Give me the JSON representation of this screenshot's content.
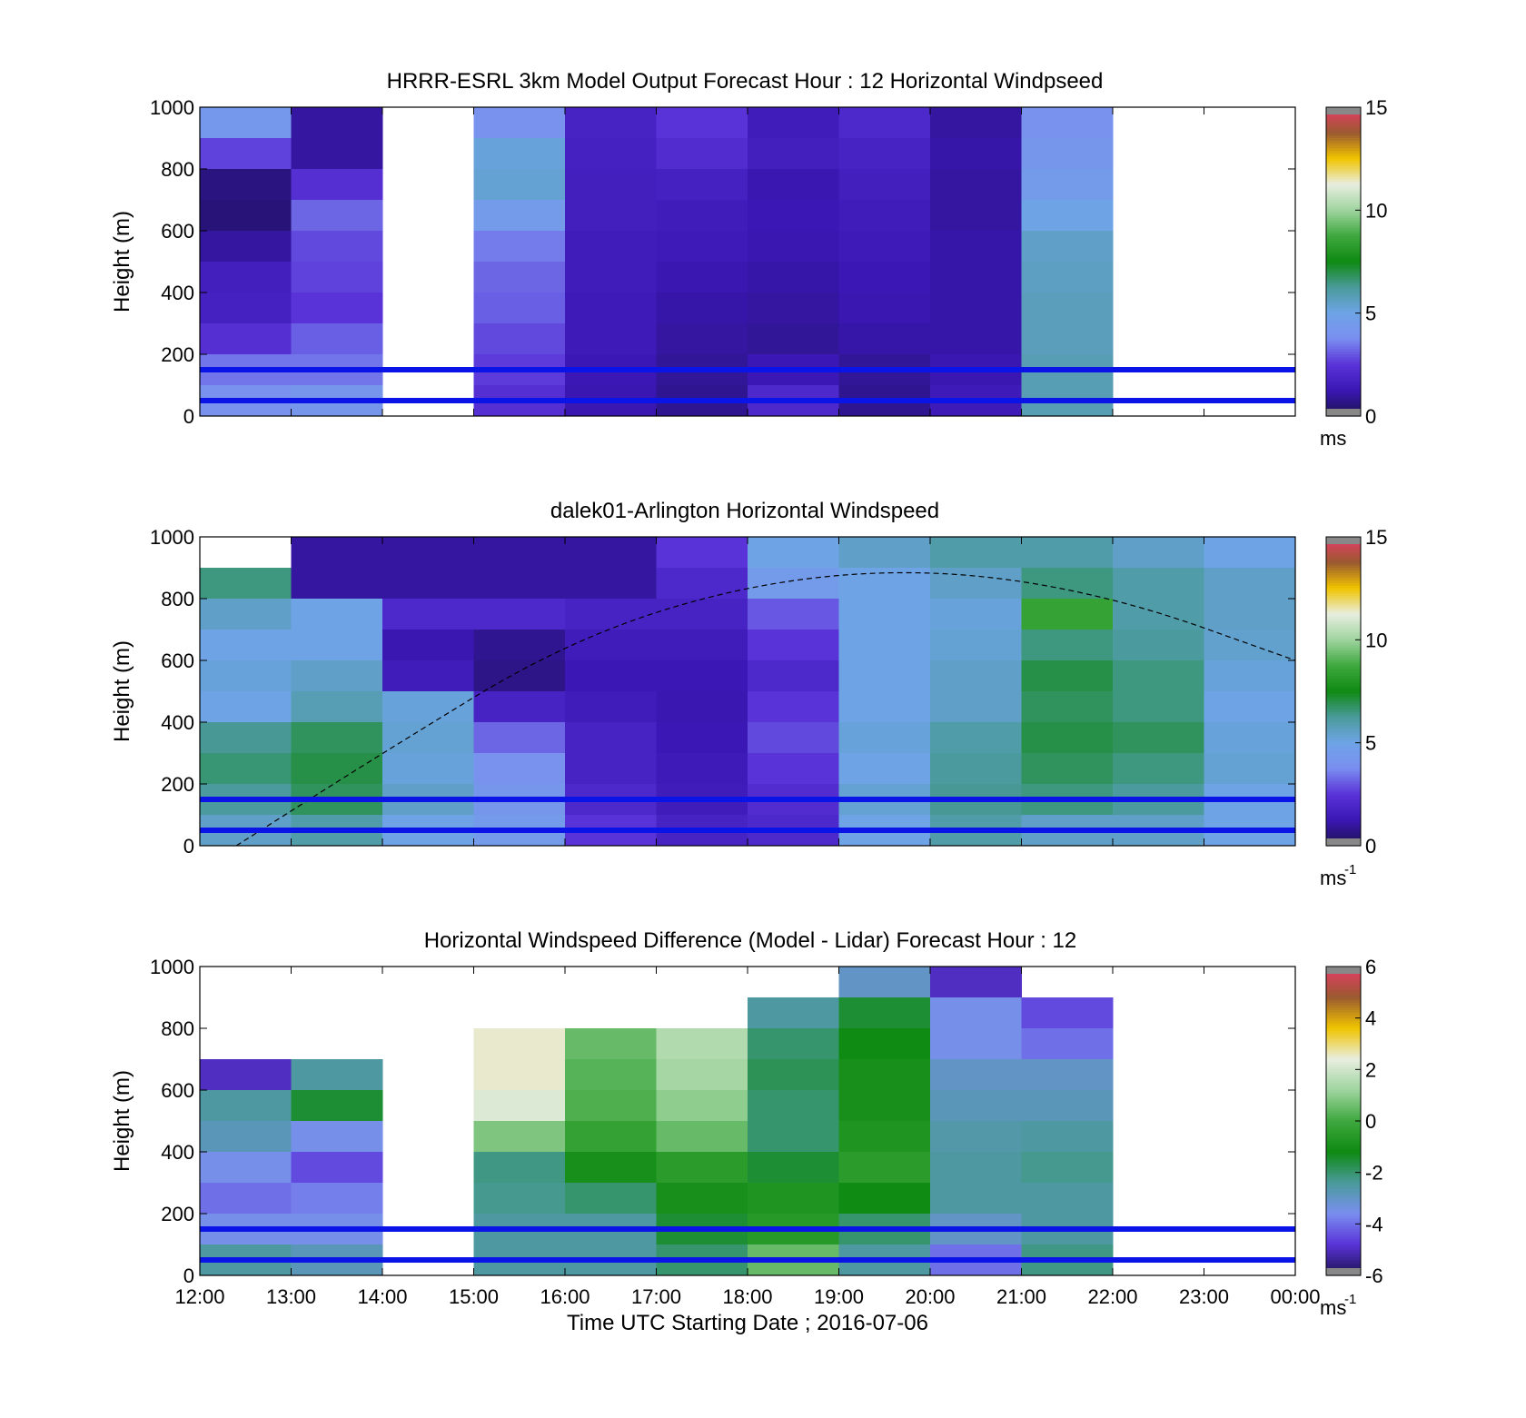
{
  "figure": {
    "xlabel": "Time UTC  Starting Date ; 2016-07-06"
  },
  "colors": {
    "reference_line": "#0a14e6",
    "missing": "#ffffff",
    "windspeed_scale": [
      "#1c1250",
      "#3a17b4",
      "#5a33d8",
      "#7a8ef0",
      "#6ea4e6",
      "#4a9a9a",
      "#0f8a12",
      "#3fa83f",
      "#9fd49f",
      "#e8eee0",
      "#f0c400",
      "#9a5a30",
      "#e83a6a"
    ],
    "difference_scale": [
      "#1c1250",
      "#5a33d8",
      "#7a8ef0",
      "#4a9a9a",
      "#0f8a12",
      "#3fa83f",
      "#9fd49f",
      "#e8eee0",
      "#f0c400",
      "#9a5a30",
      "#e83a6a"
    ]
  },
  "chart_data": [
    {
      "id": "model",
      "type": "heatmap",
      "title": "HRRR-ESRL 3km Model Output   Forecast Hour : 12 Horizontal Windpseed",
      "ylabel": "Height (m)",
      "xlim": [
        "12:00",
        "00:00"
      ],
      "ylim": [
        0,
        1000
      ],
      "yticks": [
        0,
        200,
        400,
        600,
        800,
        1000
      ],
      "hours": [
        "12:00",
        "13:00",
        "14:00",
        "15:00",
        "16:00",
        "17:00",
        "18:00",
        "19:00",
        "20:00",
        "21:00",
        "22:00",
        "23:00"
      ],
      "heights": [
        1000,
        900,
        800,
        700,
        600,
        500,
        400,
        300,
        200,
        100
      ],
      "values": [
        [
          4.3,
          1.0,
          null,
          4.0,
          1.8,
          2.5,
          1.5,
          2.0,
          1.0,
          4.0,
          null,
          null
        ],
        [
          2.7,
          1.0,
          null,
          5.2,
          1.7,
          2.2,
          1.6,
          1.8,
          1.1,
          4.2,
          null,
          null
        ],
        [
          0.6,
          2.3,
          null,
          5.3,
          1.6,
          1.7,
          1.2,
          1.6,
          1.0,
          4.5,
          null,
          null
        ],
        [
          0.5,
          3.2,
          null,
          4.5,
          1.6,
          1.5,
          1.3,
          1.5,
          1.0,
          5.0,
          null,
          null
        ],
        [
          1.0,
          2.8,
          null,
          3.5,
          1.5,
          1.4,
          1.2,
          1.4,
          1.1,
          5.5,
          null,
          null
        ],
        [
          1.6,
          2.7,
          null,
          3.2,
          1.5,
          1.2,
          1.1,
          1.3,
          1.1,
          5.6,
          null,
          null
        ],
        [
          1.7,
          2.5,
          null,
          3.1,
          1.4,
          1.1,
          1.0,
          1.2,
          1.1,
          5.7,
          null,
          null
        ],
        [
          2.3,
          3.1,
          null,
          2.8,
          1.4,
          1.0,
          0.9,
          1.1,
          1.1,
          5.7,
          null,
          null
        ],
        [
          3.4,
          3.4,
          null,
          2.6,
          1.3,
          0.9,
          1.3,
          0.9,
          1.2,
          5.8,
          null,
          null
        ],
        [
          4.0,
          4.2,
          null,
          2.3,
          1.2,
          0.8,
          2.0,
          0.8,
          1.4,
          5.8,
          null,
          null
        ]
      ],
      "reference_lines_m": [
        150,
        50
      ],
      "colorbar": {
        "range": [
          0,
          15
        ],
        "ticks": [
          0,
          5,
          10,
          15
        ],
        "unit": "ms"
      }
    },
    {
      "id": "lidar",
      "type": "heatmap",
      "title": "dalek01-Arlington  Horizontal Windspeed",
      "ylabel": "Height (m)",
      "xlim": [
        "12:00",
        "00:00"
      ],
      "ylim": [
        0,
        1000
      ],
      "yticks": [
        0,
        200,
        400,
        600,
        800,
        1000
      ],
      "hours": [
        "12:00",
        "13:00",
        "14:00",
        "15:00",
        "16:00",
        "17:00",
        "18:00",
        "19:00",
        "20:00",
        "21:00",
        "22:00",
        "23:00"
      ],
      "heights": [
        1000,
        900,
        800,
        700,
        600,
        500,
        400,
        300,
        200,
        100
      ],
      "values": [
        [
          null,
          1.0,
          1.0,
          1.0,
          1.0,
          2.5,
          5.0,
          5.5,
          6.0,
          6.0,
          5.5,
          5.0
        ],
        [
          6.5,
          1.0,
          1.0,
          1.0,
          1.0,
          2.0,
          4.5,
          5.0,
          5.5,
          6.5,
          6.0,
          5.5
        ],
        [
          5.5,
          5.0,
          2.0,
          2.0,
          1.8,
          1.8,
          3.0,
          5.0,
          5.2,
          8.5,
          6.0,
          5.5
        ],
        [
          5.0,
          5.0,
          1.2,
          0.8,
          1.5,
          1.5,
          2.5,
          5.0,
          5.3,
          6.5,
          6.2,
          5.4
        ],
        [
          5.2,
          5.5,
          1.5,
          0.7,
          1.3,
          1.3,
          2.0,
          5.0,
          5.5,
          7.0,
          6.5,
          5.2
        ],
        [
          5.0,
          5.8,
          5.2,
          1.8,
          1.5,
          1.2,
          2.5,
          5.0,
          5.5,
          6.8,
          6.5,
          5.0
        ],
        [
          6.3,
          6.8,
          5.3,
          3.2,
          1.8,
          1.3,
          2.8,
          5.2,
          6.0,
          7.0,
          6.8,
          5.2
        ],
        [
          6.6,
          7.0,
          5.2,
          4.0,
          1.8,
          1.4,
          2.5,
          5.0,
          6.2,
          6.8,
          6.5,
          5.3
        ],
        [
          6.2,
          6.8,
          5.5,
          4.2,
          2.0,
          1.5,
          2.2,
          5.3,
          6.3,
          6.5,
          6.2,
          5.0
        ],
        [
          5.5,
          6.0,
          5.0,
          4.5,
          2.5,
          1.8,
          2.0,
          5.0,
          6.0,
          5.5,
          5.5,
          5.0
        ]
      ],
      "dashed_curve": {
        "x": [
          "12:24",
          "14:00",
          "16:00",
          "18:00",
          "20:00",
          "22:00",
          "00:00"
        ],
        "y": [
          0,
          300,
          660,
          850,
          900,
          810,
          600
        ]
      },
      "reference_lines_m": [
        150,
        50
      ],
      "colorbar": {
        "range": [
          0,
          15
        ],
        "ticks": [
          0,
          5,
          10,
          15
        ],
        "unit": "ms",
        "unit_exponent": "-1"
      }
    },
    {
      "id": "difference",
      "type": "heatmap",
      "title": "Horizontal Windspeed Difference (Model - Lidar) Forecast Hour : 12",
      "ylabel": "Height (m)",
      "xlim": [
        "12:00",
        "00:00"
      ],
      "ylim": [
        0,
        1000
      ],
      "yticks": [
        0,
        200,
        400,
        600,
        800,
        1000
      ],
      "xticks": [
        "12:00",
        "13:00",
        "14:00",
        "15:00",
        "16:00",
        "17:00",
        "18:00",
        "19:00",
        "20:00",
        "21:00",
        "22:00",
        "23:00",
        "00:00"
      ],
      "hours": [
        "12:00",
        "13:00",
        "14:00",
        "15:00",
        "16:00",
        "17:00",
        "18:00",
        "19:00",
        "20:00",
        "21:00",
        "22:00",
        "23:00"
      ],
      "heights": [
        1000,
        900,
        800,
        700,
        600,
        500,
        400,
        300,
        200,
        100
      ],
      "values": [
        [
          null,
          null,
          null,
          null,
          null,
          null,
          null,
          -3.0,
          -5.0,
          null,
          null,
          null
        ],
        [
          null,
          null,
          null,
          null,
          null,
          null,
          -2.5,
          -1.5,
          -3.5,
          -4.5,
          null,
          null
        ],
        [
          null,
          null,
          null,
          2.5,
          0.5,
          1.5,
          -2.0,
          -1.2,
          -3.5,
          -4.0,
          null,
          null
        ],
        [
          -5.0,
          -2.5,
          null,
          2.5,
          0.3,
          1.3,
          -1.8,
          -1.0,
          -3.0,
          -3.0,
          null,
          null
        ],
        [
          -2.5,
          -1.5,
          null,
          2.2,
          0.2,
          1.0,
          -2.0,
          -1.0,
          -2.8,
          -2.8,
          null,
          null
        ],
        [
          -2.8,
          -3.5,
          null,
          0.8,
          -0.3,
          0.5,
          -2.0,
          -0.8,
          -2.6,
          -2.5,
          null,
          null
        ],
        [
          -3.5,
          -4.5,
          null,
          -2.2,
          -1.0,
          -0.5,
          -1.5,
          -0.5,
          -2.5,
          -2.3,
          null,
          null
        ],
        [
          -4.0,
          -3.8,
          null,
          -2.3,
          -2.0,
          -1.0,
          -0.8,
          -1.2,
          -2.5,
          -2.5,
          null,
          null
        ],
        [
          -3.5,
          -3.5,
          null,
          -2.5,
          -2.5,
          -1.5,
          -0.6,
          -2.0,
          -3.0,
          -2.5,
          null,
          null
        ],
        [
          -2.5,
          -2.8,
          null,
          -2.5,
          -2.5,
          -2.0,
          0.5,
          -2.5,
          -4.0,
          -2.2,
          null,
          null
        ]
      ],
      "reference_lines_m": [
        150,
        50
      ],
      "colorbar": {
        "range": [
          -6,
          6
        ],
        "ticks": [
          -6,
          -4,
          -2,
          0,
          2,
          4,
          6
        ],
        "unit": "ms",
        "unit_exponent": "-1"
      }
    }
  ]
}
